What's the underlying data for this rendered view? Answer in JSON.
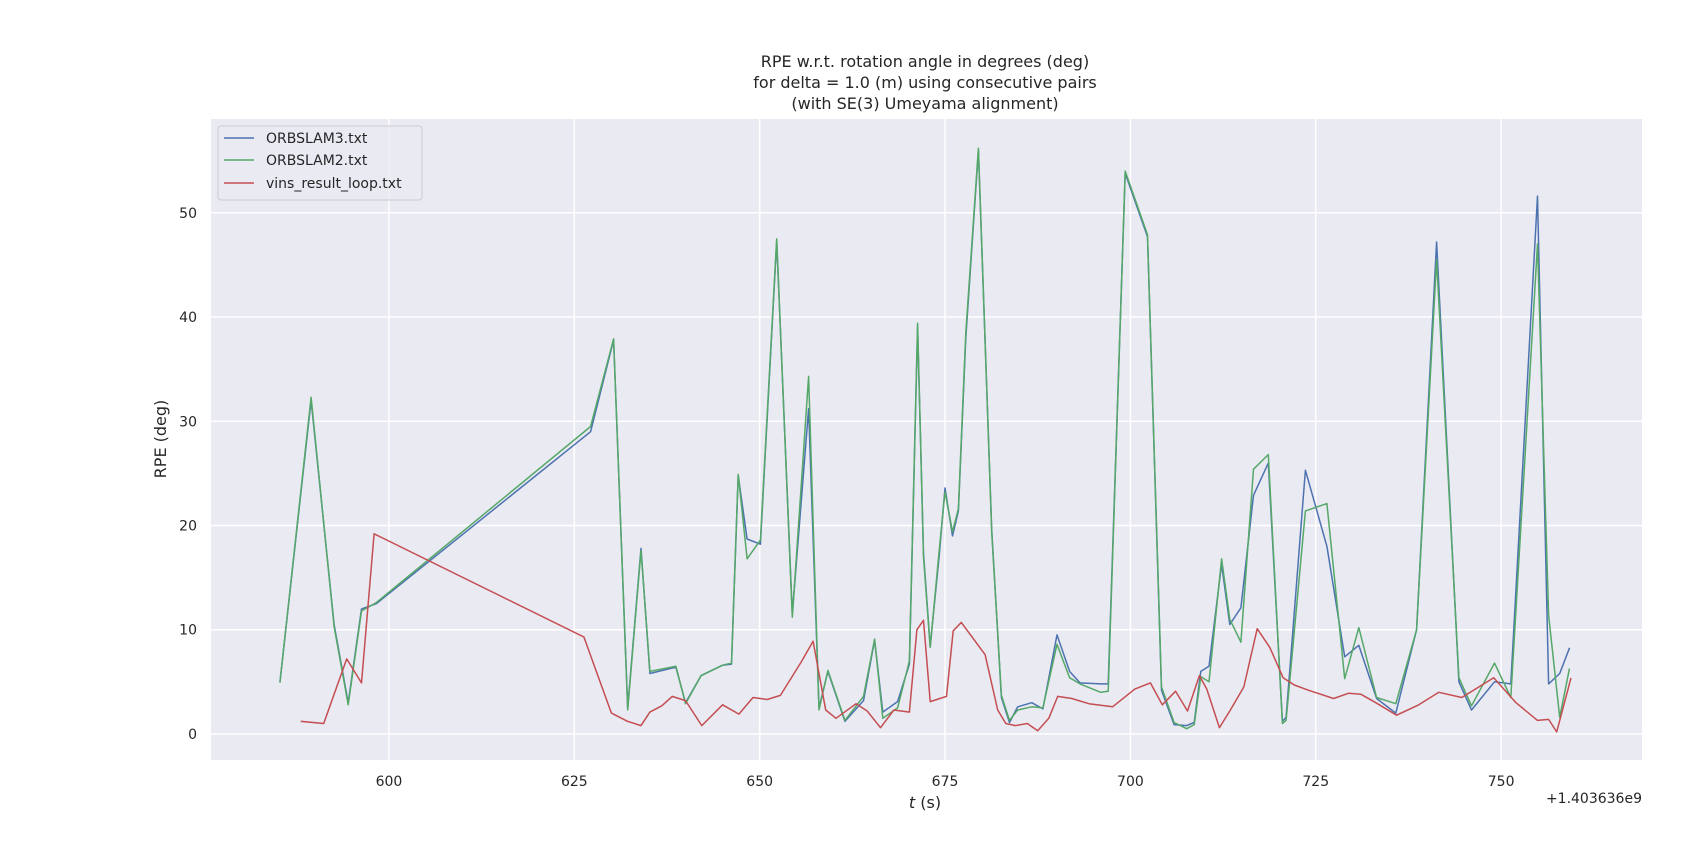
{
  "chart_data": {
    "type": "line",
    "title_lines": [
      "RPE w.r.t. rotation angle in degrees (deg)",
      "for delta = 1.0 (m) using consecutive pairs",
      "(with SE(3) Umeyama alignment)"
    ],
    "xlabel_italic": "t",
    "xlabel_rest": " (s)",
    "ylabel": "RPE (deg)",
    "offset_label": "+1.403636e9",
    "xlim": [
      576,
      769
    ],
    "ylim": [
      -2.5,
      59
    ],
    "xticks": [
      600,
      625,
      650,
      675,
      700,
      725,
      750
    ],
    "xtick_labels": [
      "600",
      "625",
      "650",
      "675",
      "700",
      "725",
      "750"
    ],
    "yticks": [
      0,
      10,
      20,
      30,
      40,
      50
    ],
    "ytick_labels": [
      "0",
      "10",
      "20",
      "30",
      "40",
      "50"
    ],
    "grid": true,
    "legend_position": "top-left",
    "series": [
      {
        "name": "ORBSLAM3.txt",
        "color": "#4c72b0",
        "x": [
          585.3,
          589.5,
          592.6,
          594.5,
          596.3,
          598.3,
          627.2,
          630.3,
          632.2,
          634.0,
          635.2,
          638.7,
          640.0,
          642.1,
          645.0,
          646.2,
          647.1,
          648.3,
          650.1,
          652.3,
          654.4,
          656.6,
          658.0,
          659.2,
          661.5,
          664.0,
          665.5,
          666.6,
          668.6,
          670.2,
          671.3,
          672.1,
          673.0,
          674.2,
          675.0,
          676.0,
          676.8,
          677.8,
          679.5,
          681.3,
          682.6,
          683.7,
          684.8,
          686.7,
          688.2,
          690.1,
          691.8,
          693.2,
          696.0,
          697.0,
          699.3,
          702.3,
          704.2,
          705.9,
          707.6,
          708.6,
          709.5,
          710.6,
          712.3,
          713.4,
          714.9,
          716.6,
          718.6,
          720.5,
          721.0,
          723.6,
          726.5,
          728.9,
          730.8,
          733.2,
          735.8,
          738.6,
          741.3,
          744.3,
          746.0,
          749.1,
          751.3,
          754.9,
          756.4,
          757.9,
          759.2
        ],
        "values": [
          5.0,
          32.0,
          10.5,
          3.0,
          12.0,
          12.5,
          29.0,
          37.8,
          2.5,
          17.8,
          5.8,
          6.4,
          3.0,
          5.6,
          6.6,
          6.7,
          24.8,
          18.7,
          18.2,
          47.3,
          11.5,
          31.2,
          2.5,
          6.0,
          1.2,
          3.2,
          9.0,
          2.1,
          3.1,
          6.7,
          39.0,
          17.3,
          8.4,
          17.0,
          23.6,
          19.0,
          21.4,
          38.0,
          56.0,
          19.6,
          3.5,
          1.1,
          2.6,
          3.0,
          2.4,
          9.5,
          6.0,
          4.9,
          4.8,
          4.8,
          53.8,
          47.7,
          4.2,
          0.9,
          0.8,
          1.1,
          6.0,
          6.5,
          16.3,
          10.5,
          12.1,
          22.9,
          26.0,
          1.2,
          1.6,
          25.3,
          18.0,
          7.4,
          8.5,
          3.4,
          2.0,
          10.0,
          47.2,
          5.0,
          2.3,
          5.0,
          4.8,
          51.6,
          4.8,
          5.8,
          8.2
        ]
      },
      {
        "name": "ORBSLAM2.txt",
        "color": "#55a868",
        "x": [
          585.3,
          589.5,
          592.6,
          594.5,
          596.3,
          598.3,
          627.2,
          630.3,
          632.2,
          634.0,
          635.2,
          638.7,
          640.0,
          642.1,
          645.0,
          646.2,
          647.1,
          648.3,
          650.1,
          652.3,
          654.4,
          656.6,
          658.0,
          659.2,
          661.5,
          664.0,
          665.5,
          666.6,
          668.6,
          670.2,
          671.3,
          672.1,
          673.0,
          674.2,
          675.0,
          676.0,
          676.8,
          677.8,
          679.5,
          681.3,
          682.6,
          683.7,
          684.8,
          686.7,
          688.2,
          690.1,
          691.8,
          693.2,
          696.0,
          697.0,
          699.3,
          702.3,
          704.2,
          705.9,
          707.6,
          708.6,
          709.5,
          710.6,
          712.3,
          713.4,
          714.9,
          716.6,
          718.6,
          720.5,
          721.0,
          723.6,
          726.5,
          728.9,
          730.8,
          733.2,
          735.8,
          738.6,
          741.3,
          744.3,
          746.0,
          749.1,
          751.3,
          754.9,
          756.4,
          757.9,
          759.2
        ],
        "values": [
          5.0,
          32.3,
          10.3,
          2.8,
          11.8,
          12.6,
          29.5,
          37.9,
          2.3,
          17.6,
          6.0,
          6.5,
          2.9,
          5.6,
          6.6,
          6.8,
          24.9,
          16.8,
          18.6,
          47.5,
          11.2,
          34.3,
          2.3,
          6.1,
          1.3,
          3.6,
          9.1,
          1.5,
          2.5,
          7.0,
          39.4,
          17.0,
          8.3,
          17.5,
          23.2,
          19.4,
          21.6,
          38.5,
          56.2,
          19.4,
          3.7,
          1.3,
          2.3,
          2.6,
          2.5,
          8.6,
          5.4,
          4.8,
          4.0,
          4.1,
          54.0,
          47.9,
          4.5,
          1.1,
          0.5,
          0.9,
          5.5,
          5.0,
          16.8,
          11.0,
          8.8,
          25.4,
          26.8,
          1.0,
          1.3,
          21.4,
          22.1,
          5.3,
          10.2,
          3.5,
          2.9,
          10.0,
          45.5,
          5.4,
          2.7,
          6.8,
          3.5,
          47.0,
          11.4,
          1.6,
          6.2
        ]
      },
      {
        "name": "vins_result_loop.txt",
        "color": "#c44e52",
        "x": [
          588.2,
          591.2,
          594.3,
          596.3,
          598.0,
          626.3,
          630.0,
          632.2,
          634.0,
          635.2,
          636.8,
          638.2,
          640.0,
          642.2,
          645.0,
          647.2,
          649.1,
          651.0,
          652.8,
          655.6,
          657.2,
          658.9,
          660.3,
          663.0,
          664.5,
          666.3,
          668.1,
          670.2,
          671.2,
          672.1,
          673.0,
          675.2,
          676.1,
          677.2,
          680.4,
          682.1,
          683.2,
          684.5,
          686.1,
          687.5,
          689.0,
          690.2,
          692.1,
          694.4,
          697.6,
          700.6,
          702.7,
          704.3,
          706.1,
          707.7,
          709.3,
          710.3,
          712.0,
          713.4,
          715.3,
          717.1,
          718.8,
          720.6,
          722.1,
          724.0,
          727.4,
          729.4,
          731.1,
          733.1,
          735.9,
          738.9,
          741.6,
          744.7,
          749.0,
          752.0,
          754.9,
          756.4,
          757.5,
          759.4
        ],
        "values": [
          1.2,
          1.0,
          7.2,
          4.9,
          19.2,
          9.3,
          2.0,
          1.2,
          0.8,
          2.1,
          2.7,
          3.6,
          3.2,
          0.8,
          2.8,
          1.9,
          3.5,
          3.3,
          3.7,
          6.9,
          8.9,
          2.3,
          1.5,
          2.9,
          2.2,
          0.6,
          2.3,
          2.1,
          10.0,
          10.9,
          3.1,
          3.6,
          9.9,
          10.7,
          7.6,
          2.3,
          1.0,
          0.8,
          1.0,
          0.3,
          1.5,
          3.6,
          3.4,
          2.9,
          2.6,
          4.3,
          4.9,
          2.8,
          4.1,
          2.2,
          5.6,
          4.3,
          0.6,
          2.2,
          4.5,
          10.1,
          8.3,
          5.4,
          4.7,
          4.2,
          3.4,
          3.9,
          3.8,
          3.0,
          1.8,
          2.8,
          4.0,
          3.5,
          5.4,
          3.0,
          1.3,
          1.4,
          0.2,
          5.3
        ]
      }
    ]
  }
}
